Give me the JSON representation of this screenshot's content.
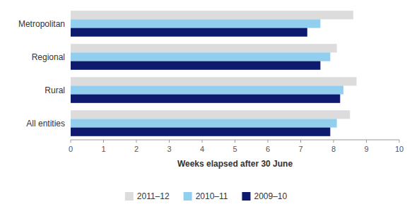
{
  "chart_data": {
    "type": "bar",
    "orientation": "horizontal",
    "x_label": "Weeks elapsed after 30 June",
    "categories": [
      "All entities",
      "Rural",
      "Regional",
      "Metropolitan"
    ],
    "series": [
      {
        "name": "2011–12",
        "color": "#dcdcdc",
        "values": [
          8.5,
          8.7,
          8.1,
          8.6
        ]
      },
      {
        "name": "2010–11",
        "color": "#92cfee",
        "values": [
          8.1,
          8.3,
          7.9,
          7.6
        ]
      },
      {
        "name": "2009–10",
        "color": "#0d1a6e",
        "values": [
          7.9,
          8.2,
          7.6,
          7.2
        ]
      }
    ],
    "xlim": [
      0,
      10
    ],
    "xticks": [
      0,
      1,
      2,
      3,
      4,
      5,
      6,
      7,
      8,
      9,
      10
    ],
    "grid": false,
    "legend": "bottom"
  }
}
